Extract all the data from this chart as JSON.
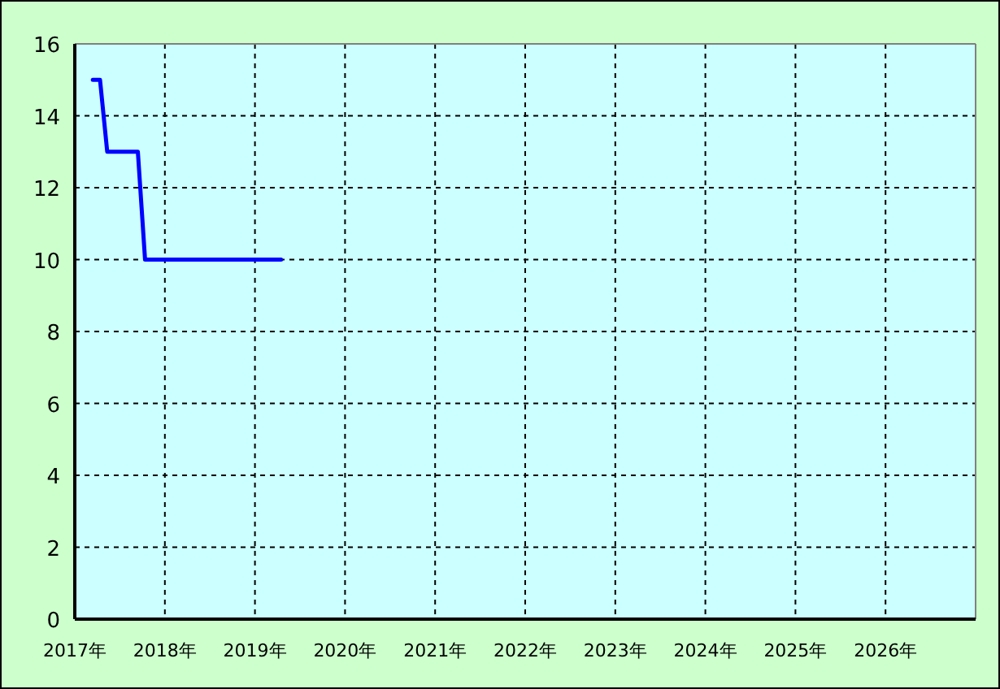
{
  "chart_data": {
    "type": "line",
    "x": [
      2017.2,
      2017.28,
      2017.36,
      2017.7,
      2017.78,
      2019.29
    ],
    "series": [
      {
        "color": "#0000ff",
        "values": [
          15,
          15,
          13,
          13,
          10,
          10
        ]
      }
    ],
    "xlim": [
      2017,
      2027
    ],
    "xticks": [
      {
        "value": 2017,
        "label": "2017年"
      },
      {
        "value": 2018,
        "label": "2018年"
      },
      {
        "value": 2019,
        "label": "2019年"
      },
      {
        "value": 2020,
        "label": "2020年"
      },
      {
        "value": 2021,
        "label": "2021年"
      },
      {
        "value": 2022,
        "label": "2022年"
      },
      {
        "value": 2023,
        "label": "2023年"
      },
      {
        "value": 2024,
        "label": "2024年"
      },
      {
        "value": 2025,
        "label": "2025年"
      },
      {
        "value": 2026,
        "label": "2026年"
      }
    ],
    "ylim": [
      0,
      16
    ],
    "yticks": [
      0,
      2,
      4,
      6,
      8,
      10,
      12,
      14,
      16
    ],
    "grid": true,
    "line_style": "solid",
    "marker": "none"
  }
}
